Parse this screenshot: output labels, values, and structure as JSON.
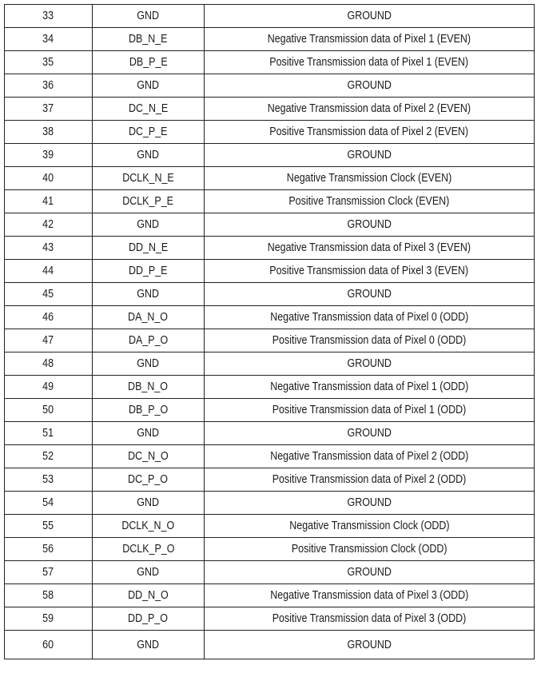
{
  "rows": [
    [
      "33",
      "GND",
      "GROUND"
    ],
    [
      "34",
      "DB_N_E",
      "Negative Transmission data of Pixel 1 (EVEN)"
    ],
    [
      "35",
      "DB_P_E",
      "Positive Transmission data of Pixel 1 (EVEN)"
    ],
    [
      "36",
      "GND",
      "GROUND"
    ],
    [
      "37",
      "DC_N_E",
      "Negative Transmission data of Pixel 2 (EVEN)"
    ],
    [
      "38",
      "DC_P_E",
      "Positive Transmission data of Pixel 2 (EVEN)"
    ],
    [
      "39",
      "GND",
      "GROUND"
    ],
    [
      "40",
      "DCLK_N_E",
      "Negative Transmission Clock (EVEN)"
    ],
    [
      "41",
      "DCLK_P_E",
      "Positive Transmission Clock (EVEN)"
    ],
    [
      "42",
      "GND",
      "GROUND"
    ],
    [
      "43",
      "DD_N_E",
      "Negative Transmission data of Pixel 3 (EVEN)"
    ],
    [
      "44",
      "DD_P_E",
      "Positive Transmission data of Pixel 3 (EVEN)"
    ],
    [
      "45",
      "GND",
      "GROUND"
    ],
    [
      "46",
      "DA_N_O",
      "Negative Transmission data of Pixel 0 (ODD)"
    ],
    [
      "47",
      "DA_P_O",
      "Positive Transmission data of Pixel 0 (ODD)"
    ],
    [
      "48",
      "GND",
      "GROUND"
    ],
    [
      "49",
      "DB_N_O",
      "Negative Transmission data of Pixel 1 (ODD)"
    ],
    [
      "50",
      "DB_P_O",
      "Positive Transmission data of Pixel 1 (ODD)"
    ],
    [
      "51",
      "GND",
      "GROUND"
    ],
    [
      "52",
      "DC_N_O",
      "Negative Transmission data of Pixel 2 (ODD)"
    ],
    [
      "53",
      "DC_P_O",
      "Positive Transmission data of Pixel 2 (ODD)"
    ],
    [
      "54",
      "GND",
      "GROUND"
    ],
    [
      "55",
      "DCLK_N_O",
      "Negative Transmission Clock (ODD)"
    ],
    [
      "56",
      "DCLK_P_O",
      "Positive Transmission Clock (ODD)"
    ],
    [
      "57",
      "GND",
      "GROUND"
    ],
    [
      "58",
      "DD_N_O",
      "Negative Transmission data of Pixel 3 (ODD)"
    ],
    [
      "59",
      "DD_P_O",
      "Positive Transmission data of Pixel 3 (ODD)"
    ],
    [
      "60",
      "GND",
      "GROUND"
    ]
  ]
}
